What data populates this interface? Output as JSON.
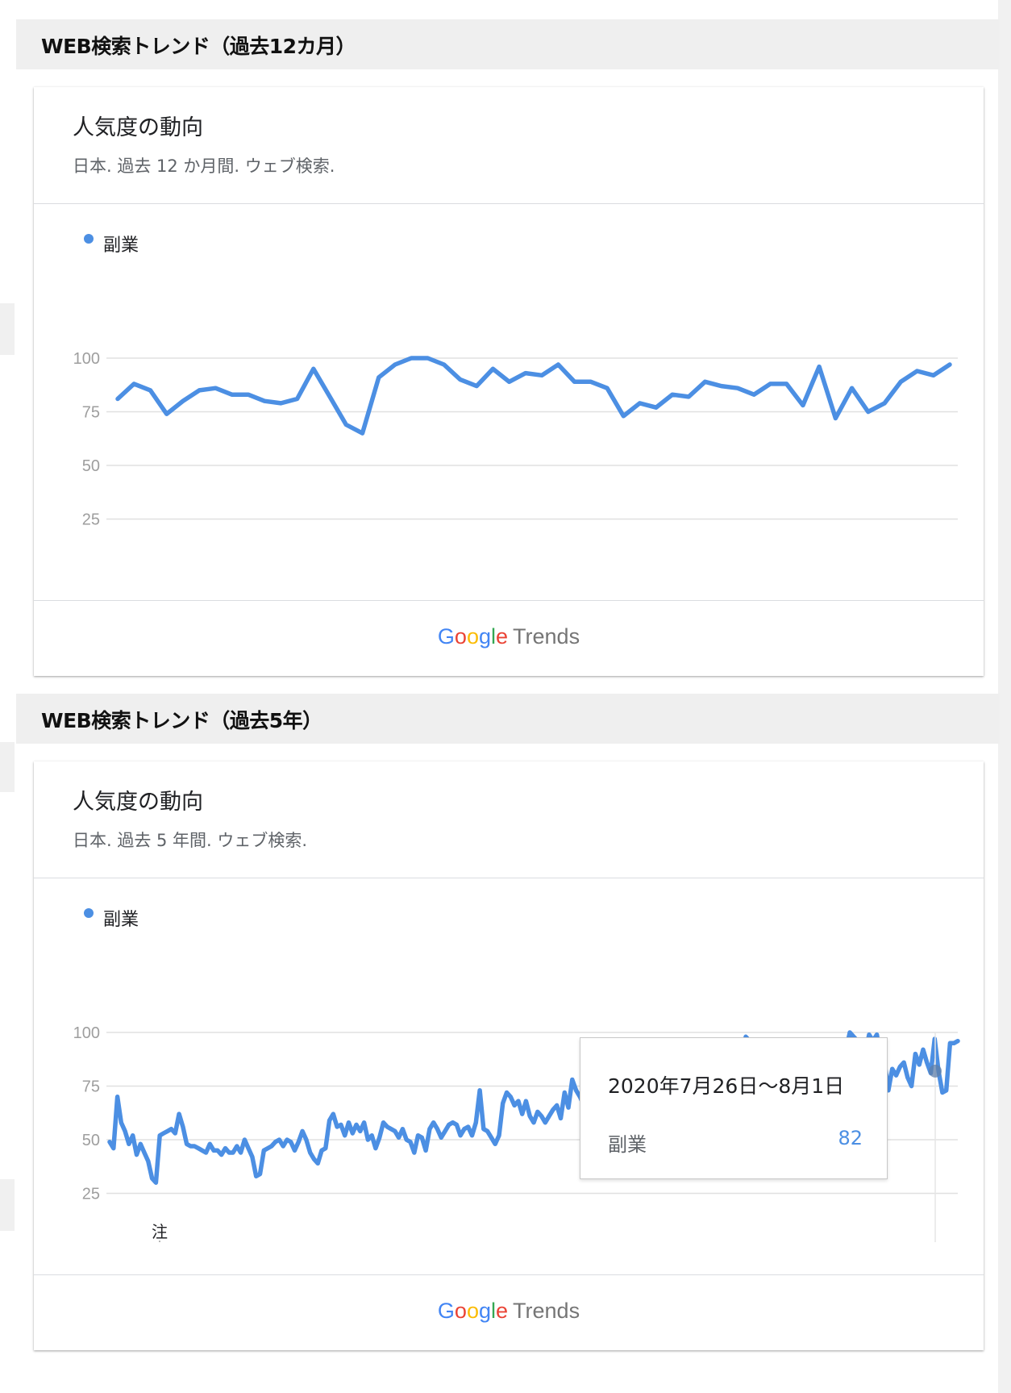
{
  "colors": {
    "series": "#4c8fe3",
    "grid": "#e0e0e0",
    "axis": "#9e9e9e",
    "tick": "#9e9e9e"
  },
  "sections": [
    {
      "heading": "WEB検索トレンド（過去12カ月）",
      "card_title": "人気度の動向",
      "card_subtitle": "日本. 過去 12 か月間. ウェブ検索.",
      "legend": "副業",
      "footer": {
        "brand": "Google",
        "product": "Trends"
      }
    },
    {
      "heading": "WEB検索トレンド（過去5年）",
      "card_title": "人気度の動向",
      "card_subtitle": "日本. 過去 5 年間. ウェブ検索.",
      "legend": "副業",
      "footer": {
        "brand": "Google",
        "product": "Trends"
      },
      "annotation": "注",
      "tooltip": {
        "date": "2020年7月26日～8月1日",
        "label": "副業",
        "value": "82"
      }
    }
  ],
  "chart_data": [
    {
      "type": "line",
      "ylim": [
        0,
        100
      ],
      "yticks": [
        25,
        50,
        75,
        100
      ],
      "xticks": [
        "2019/09/15",
        "2019/12/08",
        "2020/03/01",
        "2020/05/24",
        "2020/08/16"
      ],
      "series": [
        {
          "name": "副業",
          "values": [
            81,
            88,
            85,
            74,
            80,
            85,
            86,
            83,
            83,
            80,
            79,
            81,
            95,
            82,
            69,
            65,
            91,
            97,
            100,
            100,
            97,
            90,
            87,
            95,
            89,
            93,
            92,
            97,
            89,
            89,
            86,
            73,
            79,
            77,
            83,
            82,
            89,
            87,
            86,
            83,
            88,
            88,
            78,
            96,
            72,
            86,
            75,
            79,
            89,
            94,
            92,
            97
          ]
        }
      ]
    },
    {
      "type": "line",
      "ylim": [
        0,
        100
      ],
      "yticks": [
        25,
        50,
        75,
        100
      ],
      "xticks": [
        "2015/09/13",
        "2016/10/16",
        "2017/11/19",
        "2018/12/23",
        "2020/01/26"
      ],
      "series": [
        {
          "name": "副業",
          "values": [
            49,
            46,
            70,
            58,
            54,
            48,
            52,
            43,
            48,
            44,
            40,
            32,
            30,
            52,
            53,
            54,
            55,
            53,
            62,
            56,
            48,
            47,
            47,
            46,
            45,
            44,
            48,
            45,
            45,
            43,
            46,
            44,
            44,
            47,
            44,
            50,
            46,
            42,
            33,
            34,
            45,
            46,
            47,
            49,
            50,
            47,
            50,
            49,
            45,
            49,
            54,
            50,
            44,
            41,
            39,
            45,
            46,
            59,
            62,
            56,
            57,
            52,
            58,
            53,
            57,
            54,
            58,
            50,
            52,
            46,
            51,
            58,
            56,
            55,
            54,
            51,
            55,
            50,
            49,
            44,
            52,
            51,
            45,
            55,
            58,
            55,
            51,
            54,
            57,
            58,
            57,
            52,
            55,
            56,
            52,
            58,
            73,
            55,
            54,
            51,
            48,
            52,
            67,
            72,
            70,
            66,
            68,
            62,
            68,
            61,
            58,
            63,
            61,
            58,
            61,
            64,
            66,
            60,
            72,
            65,
            78,
            73,
            70,
            66,
            62,
            60,
            58,
            57,
            58,
            56,
            60,
            66,
            68,
            64,
            67,
            64,
            72,
            78,
            70,
            66,
            70,
            69,
            67,
            71,
            65,
            57,
            52,
            50,
            84,
            83,
            86,
            84,
            90,
            92,
            86,
            83,
            74,
            76,
            70,
            73,
            78,
            76,
            74,
            78,
            74,
            98,
            96,
            74,
            70,
            76,
            73,
            70,
            64,
            75,
            87,
            82,
            77,
            80,
            74,
            78,
            81,
            78,
            76,
            77,
            79,
            87,
            80,
            79,
            77,
            73,
            93,
            92,
            100,
            98,
            96,
            92,
            90,
            99,
            96,
            99,
            88,
            86,
            73,
            83,
            80,
            84,
            86,
            79,
            75,
            90,
            85,
            92,
            86,
            81,
            97,
            82,
            72,
            73,
            95,
            95,
            96
          ]
        }
      ]
    }
  ]
}
